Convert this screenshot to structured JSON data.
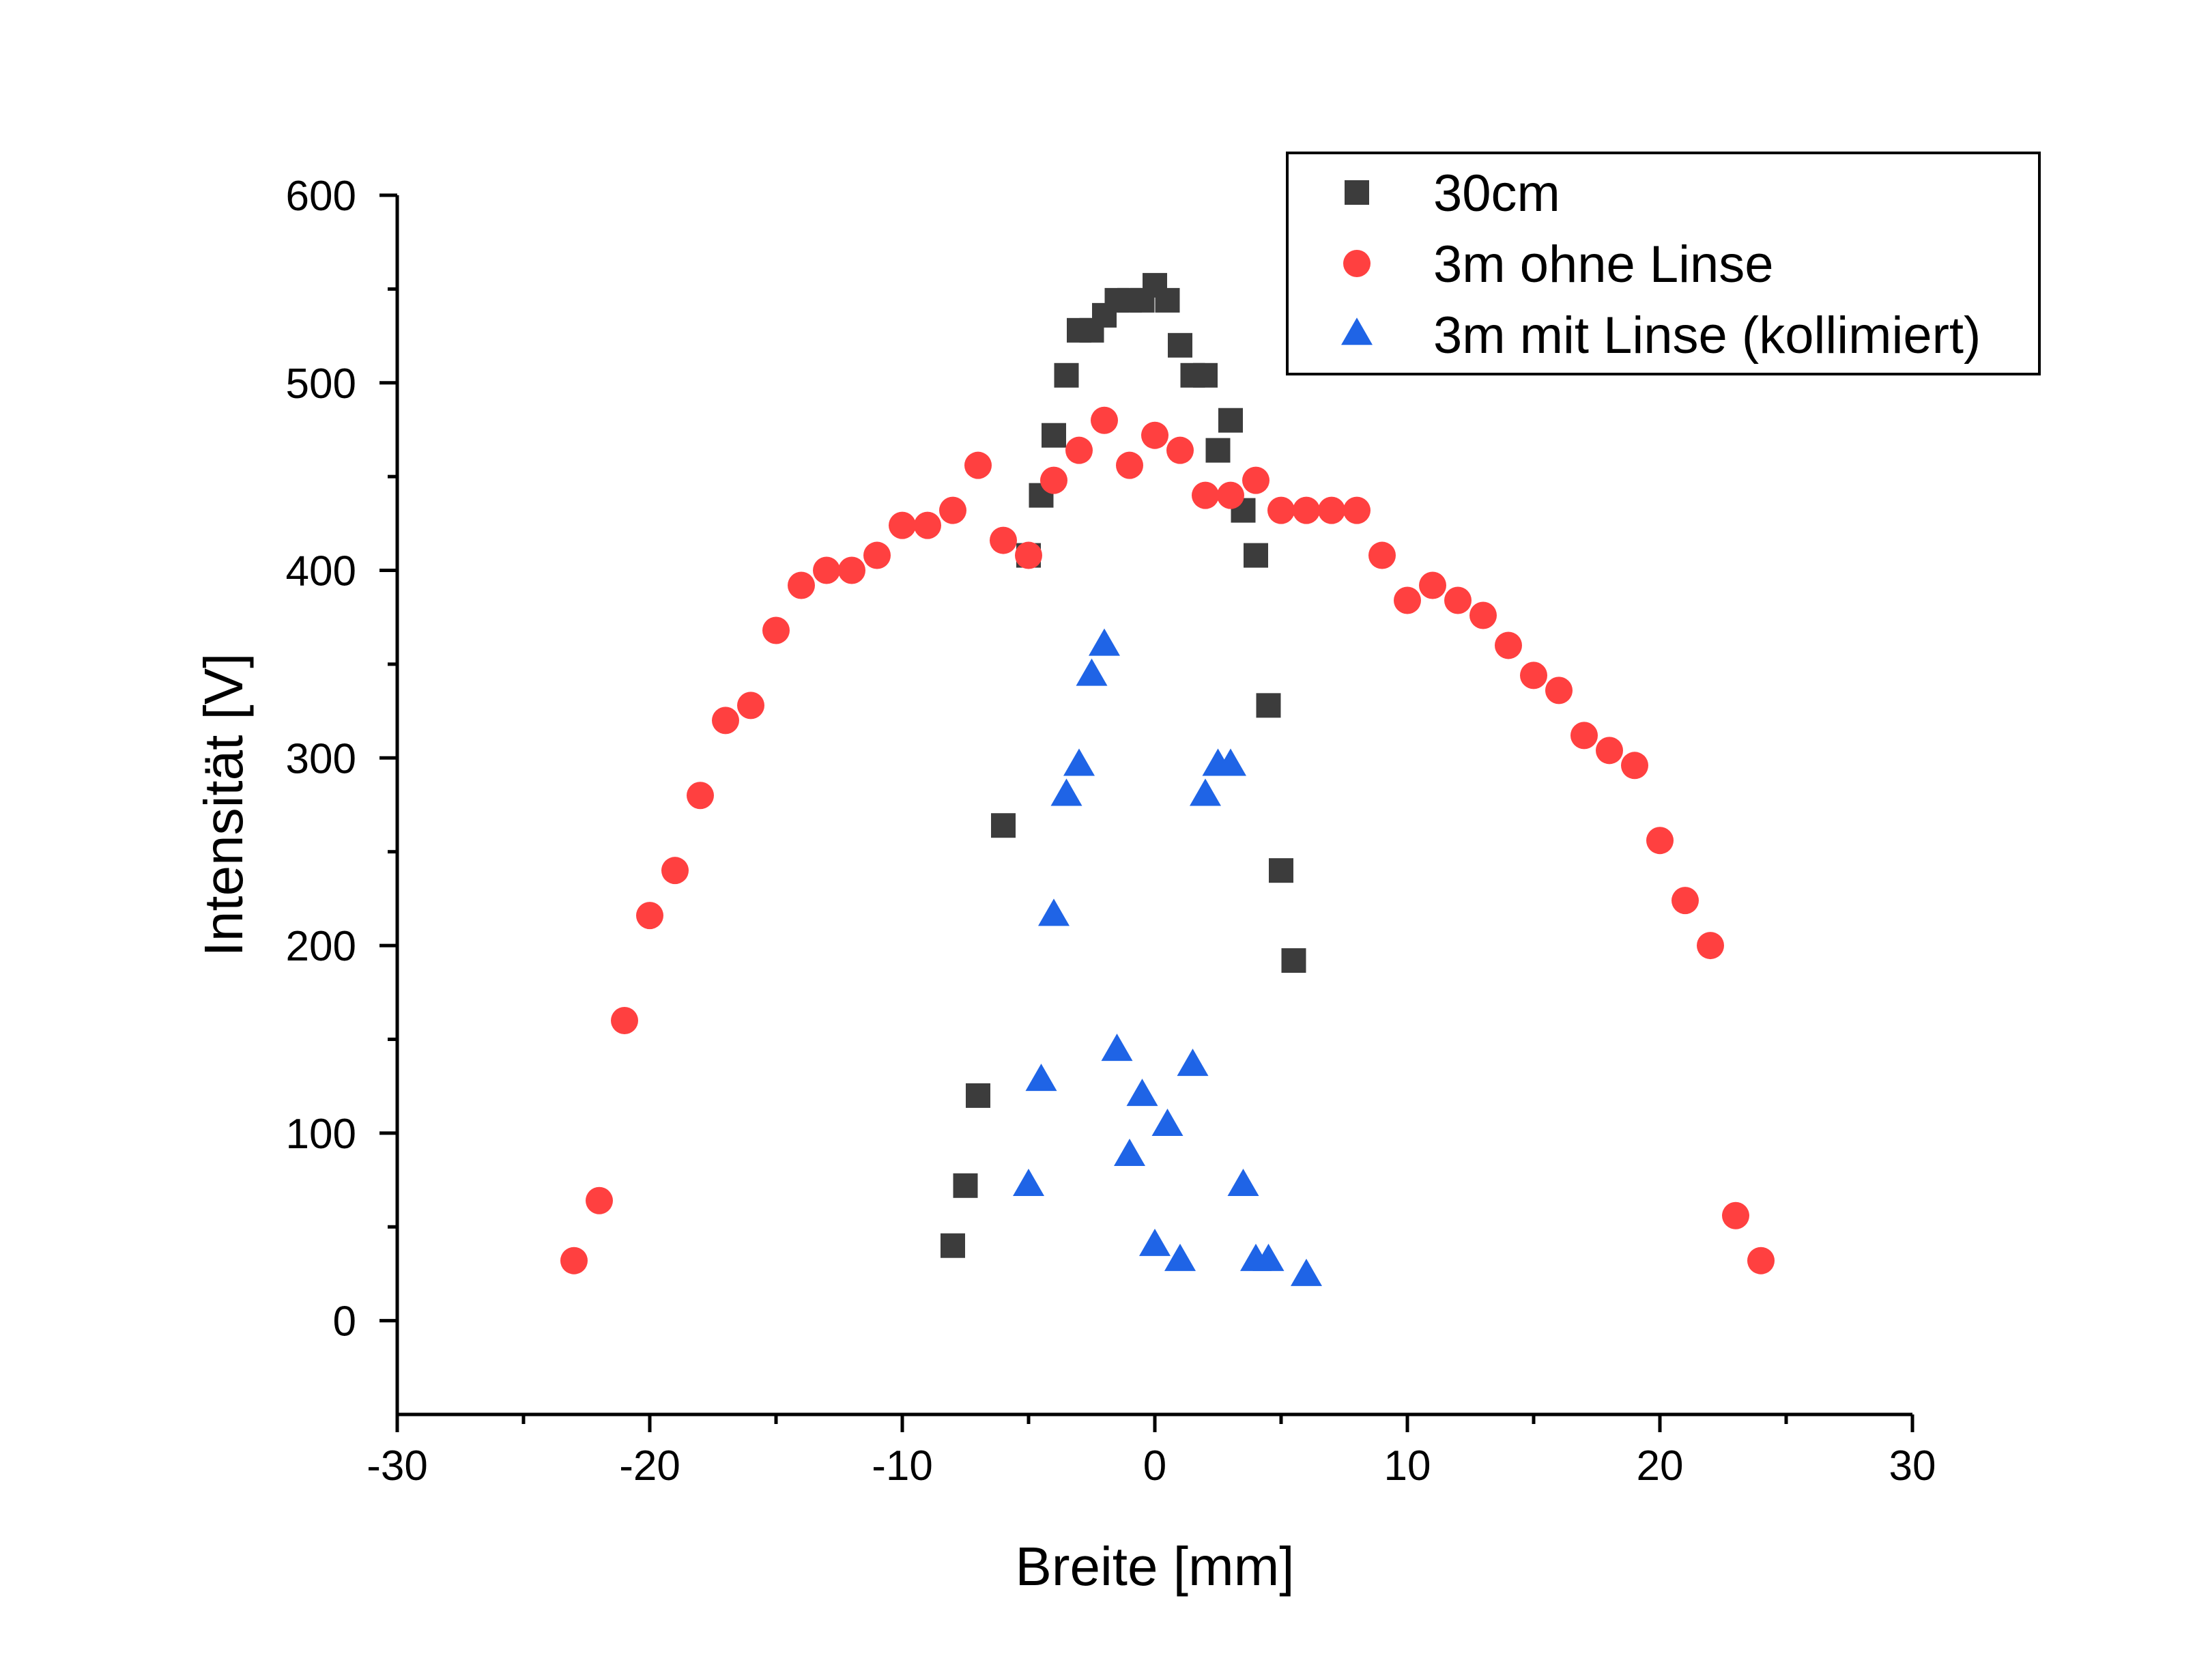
{
  "chart_data": {
    "type": "scatter",
    "title": "",
    "xlabel": "Breite [mm]",
    "ylabel": "Intensität [V]",
    "xlim": [
      -30,
      30
    ],
    "ylim": [
      -50,
      600
    ],
    "x_ticks": [
      -30,
      -20,
      -10,
      0,
      10,
      20,
      30
    ],
    "y_ticks": [
      0,
      100,
      200,
      300,
      400,
      500,
      600
    ],
    "x_tick_labels": [
      "-30",
      "-20",
      "-10",
      "0",
      "10",
      "20",
      "30"
    ],
    "y_tick_labels": [
      "0",
      "100",
      "200",
      "300",
      "400",
      "500",
      "600"
    ],
    "grid": false,
    "legend_position": "top-right",
    "series": [
      {
        "name": "30cm",
        "marker": "square",
        "color": "#3c3c3c",
        "x": [
          -8,
          -7.5,
          -7,
          -6,
          -5,
          -4.5,
          -4,
          -3.5,
          -3,
          -2.5,
          -2,
          -1.5,
          -1,
          -0.5,
          0,
          0.5,
          1,
          1.5,
          2,
          2.5,
          3,
          3.5,
          4,
          4.5,
          5,
          5.5
        ],
        "y": [
          40,
          72,
          120,
          264,
          408,
          440,
          472,
          504,
          528,
          528,
          536,
          544,
          544,
          544,
          552,
          544,
          520,
          504,
          504,
          464,
          480,
          432,
          408,
          328,
          240,
          192
        ]
      },
      {
        "name": "3m ohne Linse",
        "marker": "circle",
        "color": "#ff4040",
        "x": [
          -23,
          -22,
          -21,
          -20,
          -19,
          -18,
          -17,
          -16,
          -15,
          -14,
          -13,
          -12,
          -11,
          -10,
          -9,
          -8,
          -7,
          -6,
          -5,
          -4,
          -3,
          -2,
          -1,
          0,
          1,
          2,
          3,
          4,
          5,
          6,
          7,
          8,
          9,
          10,
          11,
          12,
          13,
          14,
          15,
          16,
          17,
          18,
          19,
          20,
          21,
          22,
          23,
          24
        ],
        "y": [
          32,
          64,
          160,
          216,
          240,
          280,
          320,
          328,
          368,
          392,
          400,
          400,
          408,
          424,
          424,
          432,
          456,
          416,
          408,
          448,
          464,
          480,
          456,
          472,
          464,
          440,
          440,
          448,
          432,
          432,
          432,
          432,
          408,
          384,
          392,
          384,
          376,
          360,
          344,
          336,
          312,
          304,
          296,
          256,
          224,
          200,
          56,
          32
        ]
      },
      {
        "name": "3m mit Linse (kollimiert)",
        "marker": "triangle",
        "color": "#1f64e6",
        "x": [
          -5,
          -4.5,
          -4,
          -3.5,
          -3,
          -2.5,
          -2,
          -1.5,
          -1,
          -0.5,
          0,
          0.5,
          1,
          1.5,
          2,
          2.5,
          3,
          3.5,
          4,
          4.5,
          6
        ],
        "y": [
          72,
          128,
          216,
          280,
          296,
          344,
          360,
          144,
          88,
          120,
          40,
          104,
          32,
          136,
          280,
          296,
          296,
          72,
          32,
          32,
          24
        ]
      }
    ]
  }
}
